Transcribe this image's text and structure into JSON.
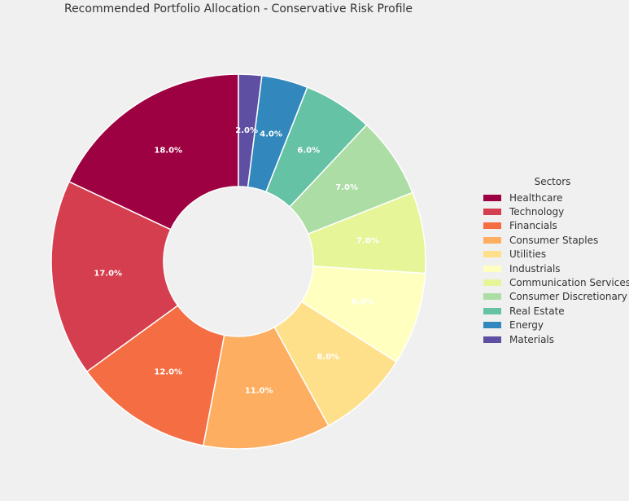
{
  "chart_data": {
    "type": "pie",
    "donut": true,
    "title": "Recommended Portfolio Allocation - Conservative Risk Profile",
    "legend_title": "Sectors",
    "legend_position": "right",
    "categories": [
      "Healthcare",
      "Technology",
      "Financials",
      "Consumer Staples",
      "Utilities",
      "Industrials",
      "Communication Services",
      "Consumer Discretionary",
      "Real Estate",
      "Energy",
      "Materials"
    ],
    "values": [
      18.0,
      17.0,
      12.0,
      11.0,
      8.0,
      8.0,
      7.0,
      7.0,
      6.0,
      4.0,
      2.0
    ],
    "labels": [
      "18.0%",
      "17.0%",
      "12.0%",
      "11.0%",
      "8.0%",
      "8.0%",
      "7.0%",
      "7.0%",
      "6.0%",
      "4.0%",
      "2.0%"
    ],
    "colors": [
      "#9e0142",
      "#d53e4f",
      "#f46d43",
      "#fdae61",
      "#fee08b",
      "#ffffbf",
      "#e6f598",
      "#abdda4",
      "#66c2a5",
      "#3288bd",
      "#5e4fa2"
    ]
  }
}
